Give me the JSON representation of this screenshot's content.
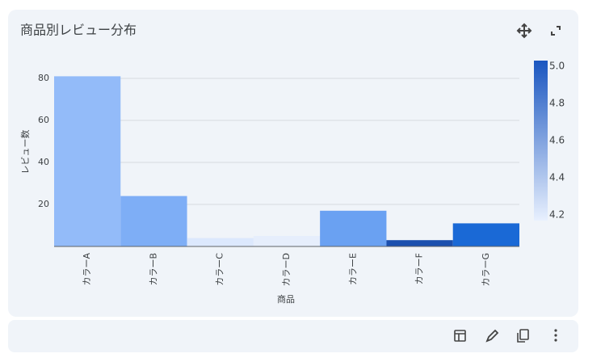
{
  "chart_data": {
    "type": "bar",
    "title": "商品別レビュー分布",
    "categories": [
      "カラーA",
      "カラーB",
      "カラーC",
      "カラーD",
      "カラーE",
      "カラーF",
      "カラーG"
    ],
    "values": [
      81,
      24,
      4,
      5,
      17,
      3,
      11
    ],
    "colors": [
      "#93bbf9",
      "#7eaef6",
      "#dce8fd",
      "#e6eefc",
      "#6aa1f2",
      "#1b4fae",
      "#1a69d6"
    ],
    "x_label": "商品",
    "y_label": "レビュー数",
    "ylim": [
      0,
      85
    ],
    "yticks": [
      20,
      40,
      60,
      80
    ],
    "grid": true,
    "colorbar": {
      "lim": [
        4.17,
        5.03
      ],
      "ticks": [
        4.2,
        4.4,
        4.6,
        4.8,
        {
          "value": 5.0,
          "label": "5.0"
        }
      ],
      "colors": [
        "#e8f0fe",
        "#1a56c0"
      ]
    }
  }
}
